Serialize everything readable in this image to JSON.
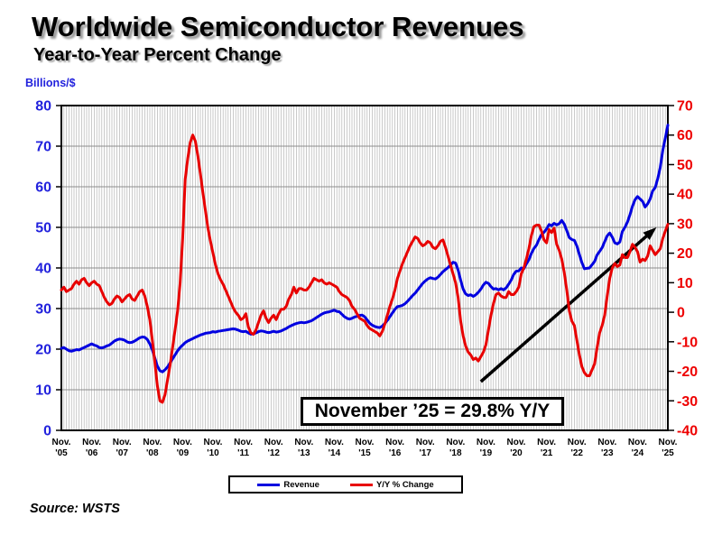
{
  "header": {
    "title": "Worldwide Semiconductor Revenues",
    "subtitle": "Year-to-Year Percent Change"
  },
  "annotation_box": {
    "text": "November ’25 = 29.8% Y/Y"
  },
  "legend": {
    "items": [
      {
        "label": "Revenue",
        "color": "#0000e0"
      },
      {
        "label": "Y/Y % Change",
        "color": "#e80000"
      }
    ]
  },
  "source": "Source: WSTS",
  "chart_data": {
    "type": "line",
    "title": "Worldwide Semiconductor Revenues",
    "subtitle": "Year-to-Year Percent Change",
    "x_axis": {
      "start": "Nov 2005",
      "end": "Nov 2025",
      "interval": "monthly",
      "points": 241,
      "month_label": "Nov.",
      "years": [
        "'05",
        "'06",
        "'07",
        "'08",
        "'09",
        "'10",
        "'11",
        "'12",
        "'13",
        "'14",
        "'15",
        "'16",
        "'17",
        "'18",
        "'19",
        "'20",
        "'21",
        "'22",
        "'23",
        "'24",
        "'25"
      ]
    },
    "left_axis": {
      "label": "Billions/$",
      "color": "#2222dd",
      "range": [
        0,
        80
      ],
      "ticks": [
        0,
        10,
        20,
        30,
        40,
        50,
        60,
        70,
        80
      ]
    },
    "right_axis": {
      "label": "Y/Y % Change",
      "color": "#ee0000",
      "range": [
        -40,
        70
      ],
      "ticks": [
        -40,
        -30,
        -20,
        -10,
        0,
        10,
        20,
        30,
        40,
        50,
        60,
        70
      ]
    },
    "grid": {
      "h_color": "#8c8c8c",
      "v_color": "#b3b3b3",
      "border_color": "#000000",
      "legend_position": "bottom"
    },
    "arrow": {
      "start_month_index": 166,
      "start_left_value": 12,
      "end_month_index": 235.5,
      "end_left_value": 50,
      "color": "#000000"
    },
    "series": [
      {
        "name": "Revenue",
        "axis": "left",
        "color": "#0000e0",
        "values": [
          20.2,
          20.4,
          20,
          19.6,
          19.5,
          19.7,
          19.9,
          19.8,
          20.1,
          20.4,
          20.7,
          21,
          21.3,
          21,
          20.8,
          20.4,
          20.3,
          20.5,
          20.8,
          21,
          21.5,
          22,
          22.3,
          22.5,
          22.4,
          22.2,
          21.8,
          21.6,
          21.7,
          22,
          22.4,
          22.8,
          23,
          22.9,
          22.4,
          21.3,
          19.8,
          17.8,
          15.8,
          14.7,
          14.4,
          14.9,
          15.6,
          16.6,
          17.6,
          18.6,
          19.6,
          20.4,
          21,
          21.6,
          22,
          22.3,
          22.6,
          22.9,
          23.2,
          23.5,
          23.7,
          23.9,
          24,
          24.1,
          24.3,
          24.2,
          24.4,
          24.5,
          24.6,
          24.7,
          24.8,
          24.9,
          25,
          24.9,
          24.7,
          24.4,
          24.3,
          24.4,
          24,
          23.7,
          23.8,
          24,
          24.3,
          24.5,
          24.4,
          24.2,
          24.1,
          24.2,
          24.4,
          24.2,
          24.3,
          24.5,
          24.8,
          25.1,
          25.5,
          25.8,
          26.1,
          26.3,
          26.5,
          26.6,
          26.5,
          26.6,
          26.8,
          27,
          27.4,
          27.8,
          28.2,
          28.6,
          28.9,
          29.1,
          29.2,
          29.4,
          29.6,
          29.3,
          29.2,
          28.6,
          28,
          27.6,
          27.4,
          27.6,
          27.9,
          28.1,
          28.3,
          28.4,
          28,
          27.2,
          26.4,
          25.9,
          25.6,
          25.4,
          25.3,
          25.7,
          26.3,
          27.1,
          28,
          28.9,
          29.8,
          30.5,
          30.6,
          30.8,
          31.2,
          31.8,
          32.5,
          33.2,
          33.8,
          34.6,
          35.4,
          36.2,
          36.8,
          37.3,
          37.6,
          37.4,
          37.3,
          37.7,
          38.4,
          39.1,
          39.6,
          40.1,
          40.7,
          41.4,
          41.2,
          39.5,
          37,
          34.8,
          33.6,
          33.2,
          33.4,
          33,
          33.4,
          34,
          34.8,
          35.8,
          36.5,
          36.2,
          35.4,
          34.8,
          34.9,
          34.6,
          34.9,
          34.6,
          35.1,
          36,
          37,
          38.4,
          39.2,
          39.3,
          40,
          39.8,
          41,
          42,
          43.6,
          44.8,
          45.6,
          47,
          48.2,
          48.8,
          49.6,
          50.7,
          50.4,
          51,
          50.6,
          50.9,
          51.7,
          50.8,
          49.2,
          47.5,
          47,
          46.8,
          45.4,
          43.3,
          41.3,
          39.8,
          39.9,
          40,
          40.8,
          41.6,
          43.2,
          44.1,
          45,
          46.5,
          47.9,
          48.6,
          47.6,
          46.2,
          45.9,
          46.4,
          49,
          50,
          51.3,
          53.1,
          55.2,
          56.8,
          57.6,
          57,
          56.4,
          55,
          55.8,
          57,
          59,
          59.8,
          62,
          64.8,
          69,
          72,
          75.2
        ]
      },
      {
        "name": "Y/Y % Change",
        "axis": "right",
        "color": "#e80000",
        "values": [
          7.5,
          8.5,
          7,
          7.5,
          8,
          9.5,
          10.5,
          9.5,
          11,
          11.5,
          10,
          9,
          10,
          10.5,
          9.5,
          9,
          7,
          5,
          3.5,
          2.5,
          3,
          4.5,
          5.5,
          5,
          3.5,
          4.5,
          5.5,
          6,
          4.5,
          4,
          5.5,
          7,
          7.5,
          5.5,
          2,
          -2.5,
          -9.5,
          -17,
          -25,
          -30,
          -30.5,
          -28,
          -23,
          -18,
          -12,
          -6,
          0.5,
          10,
          25,
          45,
          52,
          57.5,
          60,
          58,
          53,
          47,
          40.5,
          34.5,
          28.5,
          24,
          20,
          16,
          13,
          11,
          9.5,
          7.5,
          5.5,
          3.5,
          1.5,
          0,
          -1,
          -2.5,
          -2,
          -0.5,
          -5,
          -7,
          -7.5,
          -6,
          -3.5,
          -1,
          0.5,
          -2,
          -3.5,
          -2,
          -1,
          -2.5,
          -0.5,
          1,
          1,
          2,
          4.5,
          6,
          8.5,
          6.5,
          8,
          8,
          7.5,
          7.5,
          8.5,
          10,
          11.5,
          11,
          10.5,
          11,
          10,
          9.5,
          10,
          9.5,
          9,
          8.5,
          7,
          6,
          5.5,
          5,
          4,
          2,
          1,
          -0.5,
          -2,
          -2.5,
          -3,
          -4.5,
          -5.5,
          -6,
          -6.5,
          -7,
          -8,
          -6.5,
          -4,
          -1,
          2,
          4.5,
          7.5,
          11.5,
          14,
          16.5,
          18.5,
          20.5,
          22.5,
          24,
          25.5,
          25,
          23.5,
          22.5,
          23,
          24,
          23.5,
          22,
          21.5,
          22.5,
          24,
          24.5,
          22,
          19,
          16,
          13,
          10,
          5,
          -3,
          -8,
          -11.5,
          -13.5,
          -14.5,
          -16,
          -15.5,
          -16.5,
          -15,
          -13.5,
          -11,
          -6,
          -1,
          3,
          6,
          6.5,
          5.5,
          5,
          5,
          7,
          6,
          6,
          7,
          8.5,
          13,
          15,
          18,
          21.5,
          26,
          29,
          29.5,
          29.5,
          27.5,
          24.5,
          23.5,
          28,
          27,
          28.5,
          23,
          21,
          18,
          13.5,
          7.5,
          0.5,
          -3,
          -4.5,
          -9.5,
          -14.5,
          -18.5,
          -20.5,
          -21.5,
          -21.5,
          -19.5,
          -17.5,
          -12,
          -7,
          -4.5,
          -1,
          5.5,
          11.5,
          15,
          16.5,
          15.5,
          16,
          19.5,
          18.5,
          18.5,
          20.5,
          23,
          22,
          20.5,
          17,
          18,
          17.5,
          19,
          22.5,
          21,
          19.5,
          20.5,
          21.5,
          25,
          27.5,
          29.8
        ]
      }
    ]
  }
}
